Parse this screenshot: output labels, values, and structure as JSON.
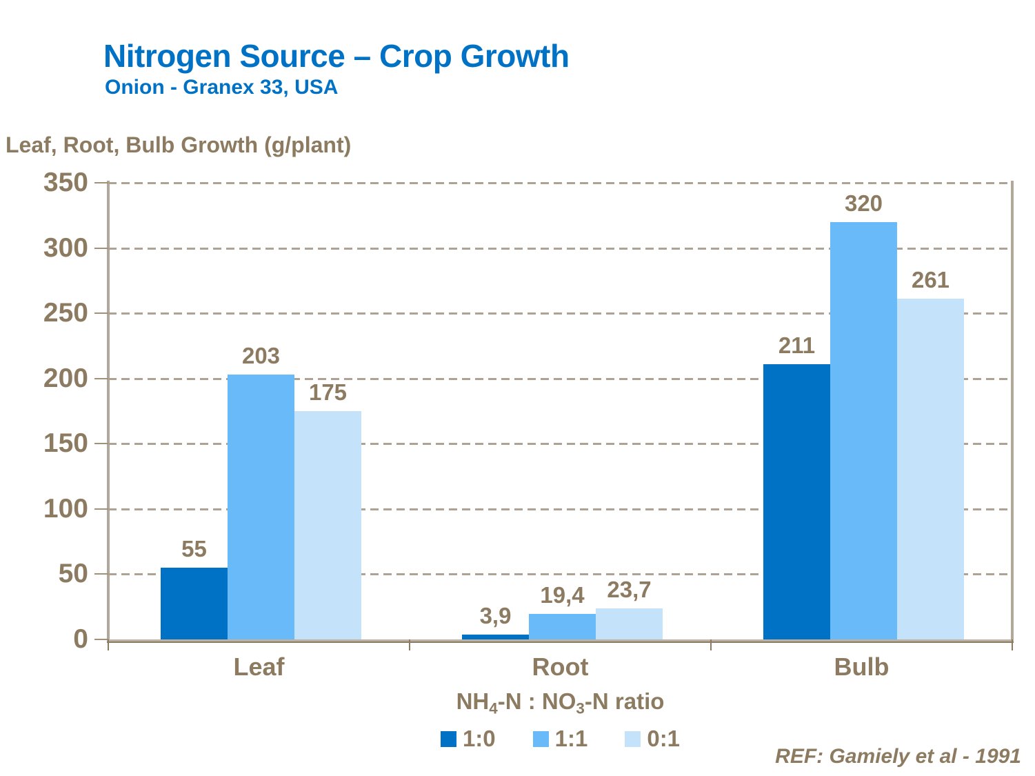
{
  "slide": {
    "title": "Nitrogen Source – Crop Growth",
    "subtitle": "Onion - Granex 33, USA",
    "reference": "REF: Gamiely et al - 1991"
  },
  "colors": {
    "title_blue": "#0072C6",
    "text_taupe": "#8C7B61",
    "frame_taupe": "#B2A89A",
    "gridline_taupe": "#AEA295",
    "tick_taupe": "#A29077",
    "series_1_0": "#0072C6",
    "series_1_1": "#69BAF8",
    "series_0_1": "#C4E2FA"
  },
  "chart_data": {
    "type": "bar",
    "title": "Leaf, Root, Bulb Growth (g/plant)",
    "ylabel": "Leaf, Root, Bulb Growth (g/plant)",
    "xlabel_text": "NH4-N : NO3-N ratio",
    "xlabel_parts": {
      "p1": "NH",
      "sub1": "4",
      "p2": "-N : NO",
      "sub2": "3",
      "p3": "-N ratio"
    },
    "categories": [
      "Leaf",
      "Root",
      "Bulb"
    ],
    "series": [
      {
        "name": "1:0",
        "color": "#0072C6",
        "values": [
          55,
          3.9,
          211
        ],
        "labels": [
          "55",
          "3,9",
          "211"
        ]
      },
      {
        "name": "1:1",
        "color": "#69BAF8",
        "values": [
          203,
          19.4,
          320
        ],
        "labels": [
          "203",
          "19,4",
          "320"
        ]
      },
      {
        "name": "0:1",
        "color": "#C4E2FA",
        "values": [
          175,
          23.7,
          261
        ],
        "labels": [
          "175",
          "23,7",
          "261"
        ]
      }
    ],
    "ylim": [
      0,
      350
    ],
    "yticks": [
      0,
      50,
      100,
      150,
      200,
      250,
      300,
      350
    ],
    "grid": "horizontal dashed, every 50",
    "legend_position": "bottom"
  }
}
